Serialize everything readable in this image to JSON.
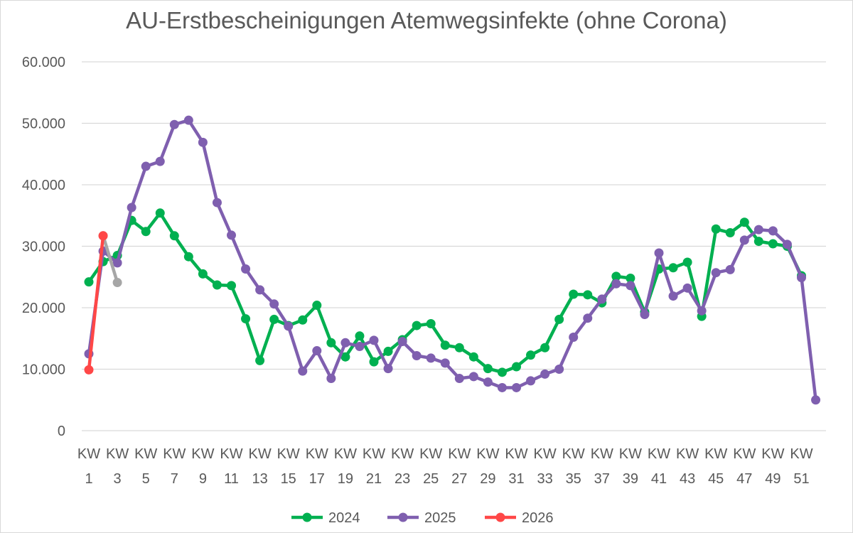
{
  "chart_data": {
    "type": "line",
    "title": "AU-Erstbescheinigungen Atemwegsinfekte (ohne Corona)",
    "xlabel": "",
    "ylabel": "",
    "ylim": [
      0,
      60000
    ],
    "yticks": [
      0,
      10000,
      20000,
      30000,
      40000,
      50000,
      60000
    ],
    "ytick_labels": [
      "0",
      "10.000",
      "20.000",
      "30.000",
      "40.000",
      "50.000",
      "60.000"
    ],
    "x": [
      1,
      2,
      3,
      4,
      5,
      6,
      7,
      8,
      9,
      10,
      11,
      12,
      13,
      14,
      15,
      16,
      17,
      18,
      19,
      20,
      21,
      22,
      23,
      24,
      25,
      26,
      27,
      28,
      29,
      30,
      31,
      32,
      33,
      34,
      35,
      36,
      37,
      38,
      39,
      40,
      41,
      42,
      43,
      44,
      45,
      46,
      47,
      48,
      49,
      50,
      51,
      52
    ],
    "xtick_labels": [
      {
        "w": 1,
        "l1": "KW",
        "l2": "1"
      },
      {
        "w": 3,
        "l1": "KW",
        "l2": "3"
      },
      {
        "w": 5,
        "l1": "KW",
        "l2": "5"
      },
      {
        "w": 7,
        "l1": "KW",
        "l2": "7"
      },
      {
        "w": 9,
        "l1": "KW",
        "l2": "9"
      },
      {
        "w": 11,
        "l1": "KW",
        "l2": "11"
      },
      {
        "w": 13,
        "l1": "KW",
        "l2": "13"
      },
      {
        "w": 15,
        "l1": "KW",
        "l2": "15"
      },
      {
        "w": 17,
        "l1": "KW",
        "l2": "17"
      },
      {
        "w": 19,
        "l1": "KW",
        "l2": "19"
      },
      {
        "w": 21,
        "l1": "KW",
        "l2": "21"
      },
      {
        "w": 23,
        "l1": "KW",
        "l2": "23"
      },
      {
        "w": 25,
        "l1": "KW",
        "l2": "25"
      },
      {
        "w": 27,
        "l1": "KW",
        "l2": "27"
      },
      {
        "w": 29,
        "l1": "KW",
        "l2": "29"
      },
      {
        "w": 31,
        "l1": "KW",
        "l2": "31"
      },
      {
        "w": 33,
        "l1": "KW",
        "l2": "33"
      },
      {
        "w": 35,
        "l1": "KW",
        "l2": "35"
      },
      {
        "w": 37,
        "l1": "KW",
        "l2": "37"
      },
      {
        "w": 39,
        "l1": "KW",
        "l2": "39"
      },
      {
        "w": 41,
        "l1": "KW",
        "l2": "41"
      },
      {
        "w": 43,
        "l1": "KW",
        "l2": "43"
      },
      {
        "w": 45,
        "l1": "KW",
        "l2": "45"
      },
      {
        "w": 47,
        "l1": "KW",
        "l2": "47"
      },
      {
        "w": 49,
        "l1": "KW",
        "l2": "49"
      },
      {
        "w": 51,
        "l1": "KW",
        "l2": "51"
      }
    ],
    "series": [
      {
        "name": "2024",
        "color": "#00b050",
        "x": [
          1,
          2,
          3,
          4,
          5,
          6,
          7,
          8,
          9,
          10,
          11,
          12,
          13,
          14,
          15,
          16,
          17,
          18,
          19,
          20,
          21,
          22,
          23,
          24,
          25,
          26,
          27,
          28,
          29,
          30,
          31,
          32,
          33,
          34,
          35,
          36,
          37,
          38,
          39,
          40,
          41,
          42,
          43,
          44,
          45,
          46,
          47,
          48,
          49,
          50,
          51
        ],
        "values": [
          24200,
          27500,
          28500,
          34200,
          32400,
          35400,
          31700,
          28300,
          25500,
          23700,
          23600,
          18200,
          11400,
          18100,
          17100,
          18000,
          20400,
          14300,
          12000,
          15400,
          11200,
          12900,
          14800,
          17100,
          17400,
          13900,
          13500,
          12000,
          10100,
          9500,
          10400,
          12300,
          13500,
          18100,
          22200,
          22100,
          20800,
          25100,
          24800,
          19300,
          26300,
          26500,
          27400,
          18600,
          32800,
          32200,
          33900,
          30800,
          30400,
          30000,
          25200
        ],
        "show_in_legend": true
      },
      {
        "name": "2025",
        "color": "#7f5faf",
        "x": [
          1,
          2,
          3,
          4,
          5,
          6,
          7,
          8,
          9,
          10,
          11,
          12,
          13,
          14,
          15,
          16,
          17,
          18,
          19,
          20,
          21,
          22,
          23,
          24,
          25,
          26,
          27,
          28,
          29,
          30,
          31,
          32,
          33,
          34,
          35,
          36,
          37,
          38,
          39,
          40,
          41,
          42,
          43,
          44,
          45,
          46,
          47,
          48,
          49,
          50,
          51,
          52
        ],
        "values": [
          12500,
          29200,
          27300,
          36300,
          43000,
          43800,
          49800,
          50500,
          46900,
          37100,
          31800,
          26300,
          22900,
          20600,
          17000,
          9700,
          13000,
          8500,
          14300,
          13700,
          14700,
          10100,
          14500,
          12200,
          11800,
          11000,
          8500,
          8800,
          7900,
          7000,
          7000,
          8100,
          9200,
          10000,
          15200,
          18300,
          21400,
          23900,
          23600,
          18900,
          28900,
          21900,
          23200,
          19500,
          25700,
          26200,
          31000,
          32700,
          32500,
          30300,
          24900,
          5000
        ],
        "show_in_legend": true
      },
      {
        "name": "2026",
        "color": "#ff4747",
        "x": [
          1,
          2
        ],
        "values": [
          9900,
          31700
        ],
        "show_in_legend": true
      },
      {
        "name": "",
        "color": "#a6a6a6",
        "x": [
          2,
          3
        ],
        "values": [
          31700,
          24100
        ],
        "show_in_legend": false
      }
    ],
    "legend_position": "bottom",
    "grid": true
  }
}
